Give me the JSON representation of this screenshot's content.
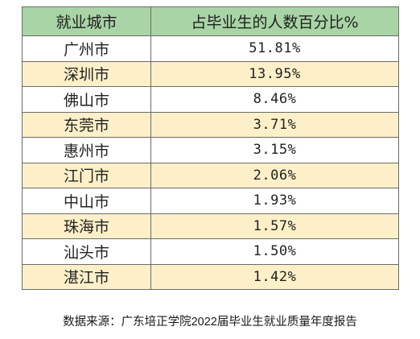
{
  "table": {
    "headers": [
      "就业城市",
      "占毕业生的人数百分比%"
    ],
    "rows": [
      {
        "city": "广州市",
        "percent": "51.81%"
      },
      {
        "city": "深圳市",
        "percent": "13.95%"
      },
      {
        "city": "佛山市",
        "percent": "8.46%"
      },
      {
        "city": "东莞市",
        "percent": "3.71%"
      },
      {
        "city": "惠州市",
        "percent": "3.15%"
      },
      {
        "city": "江门市",
        "percent": "2.06%"
      },
      {
        "city": "中山市",
        "percent": "1.93%"
      },
      {
        "city": "珠海市",
        "percent": "1.57%"
      },
      {
        "city": "汕头市",
        "percent": "1.50%"
      },
      {
        "city": "湛江市",
        "percent": "1.42%"
      }
    ]
  },
  "source": "数据来源：广东培正学院2022届毕业生就业质量年度报告",
  "colors": {
    "header_bg": "#a9d4a6",
    "even_row_bg": "#fdf0c8",
    "odd_row_bg": "#ffffff",
    "border": "#6b6b6b"
  }
}
